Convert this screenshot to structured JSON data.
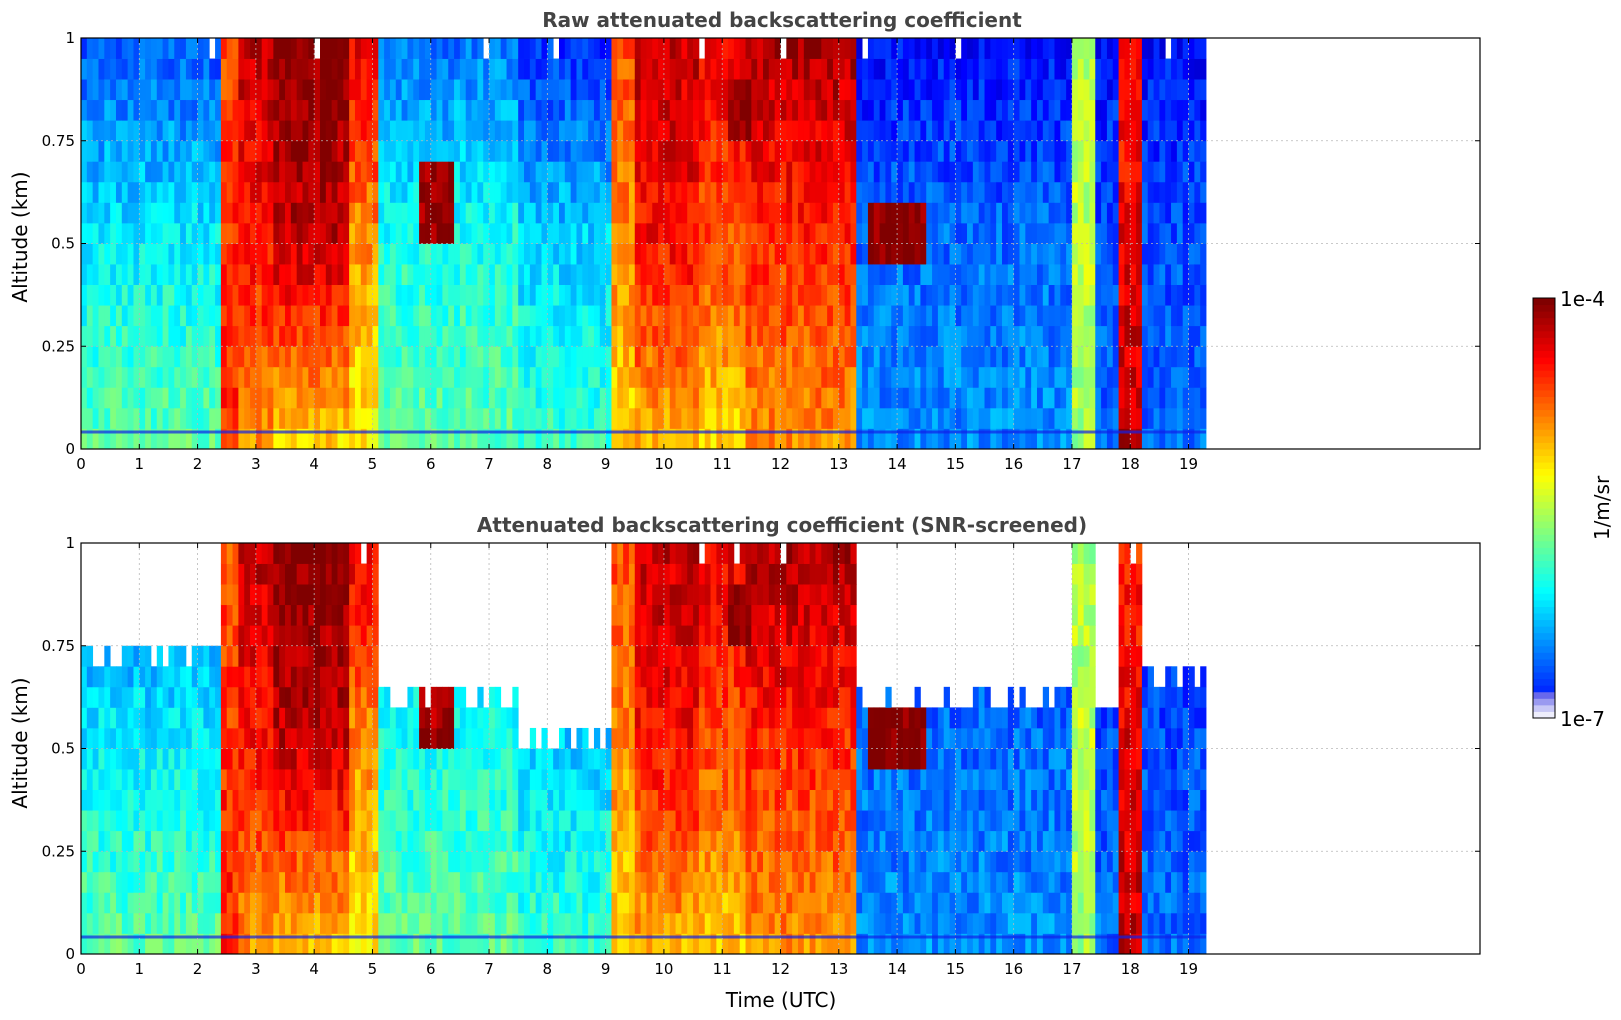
{
  "chart_data": [
    {
      "type": "heatmap",
      "title": "Raw attenuated backscattering coefficient",
      "xlabel": "",
      "ylabel": "Altitude (km)",
      "xlim": [
        0,
        24
      ],
      "ylim": [
        0,
        1
      ],
      "xticks": [
        "0",
        "1",
        "2",
        "3",
        "4",
        "5",
        "6",
        "7",
        "8",
        "9",
        "10",
        "11",
        "12",
        "13",
        "14",
        "15",
        "16",
        "17",
        "18",
        "19"
      ],
      "yticks": [
        "0",
        "0.25",
        "0.5",
        "0.75",
        "1"
      ],
      "data_end_hour": 19.3,
      "grid": true,
      "screened": false,
      "profiles_log10": [
        {
          "t0": 0.0,
          "t1": 2.4,
          "surface": -5.6,
          "low": -5.9,
          "top": -6.4,
          "top_alt": 1.0
        },
        {
          "t0": 2.4,
          "t1": 2.75,
          "surface": -4.5,
          "low": -4.5,
          "top": -4.6,
          "top_alt": 1.0
        },
        {
          "t0": 2.75,
          "t1": 3.3,
          "surface": -4.8,
          "low": -4.4,
          "top": -4.2,
          "top_alt": 1.0
        },
        {
          "t0": 3.3,
          "t1": 4.6,
          "surface": -5.0,
          "low": -4.2,
          "top": -4.0,
          "top_alt": 1.0
        },
        {
          "t0": 4.6,
          "t1": 5.1,
          "surface": -5.1,
          "low": -4.8,
          "top": -4.3,
          "top_alt": 1.0
        },
        {
          "t0": 5.1,
          "t1": 7.5,
          "surface": -5.6,
          "low": -5.8,
          "top": -6.3,
          "top_alt": 1.0
        },
        {
          "t0": 7.5,
          "t1": 9.1,
          "surface": -5.7,
          "low": -6.0,
          "top": -6.5,
          "top_alt": 1.0
        },
        {
          "t0": 9.1,
          "t1": 9.5,
          "surface": -5.0,
          "low": -4.8,
          "top": -4.6,
          "top_alt": 1.0
        },
        {
          "t0": 9.5,
          "t1": 10.6,
          "surface": -4.9,
          "low": -4.4,
          "top": -4.2,
          "top_alt": 1.0
        },
        {
          "t0": 10.6,
          "t1": 11.4,
          "surface": -5.0,
          "low": -4.6,
          "top": -4.3,
          "top_alt": 1.0
        },
        {
          "t0": 11.4,
          "t1": 13.3,
          "surface": -4.8,
          "low": -4.5,
          "top": -4.1,
          "top_alt": 1.0
        },
        {
          "t0": 13.3,
          "t1": 17.0,
          "surface": -6.2,
          "low": -6.3,
          "top": -6.6,
          "top_alt": 1.0
        },
        {
          "t0": 17.0,
          "t1": 17.4,
          "surface": -5.4,
          "low": -5.3,
          "top": -5.4,
          "top_alt": 1.0
        },
        {
          "t0": 17.4,
          "t1": 17.8,
          "surface": -6.3,
          "low": -6.4,
          "top": -6.6,
          "top_alt": 1.0
        },
        {
          "t0": 17.8,
          "t1": 18.2,
          "surface": -4.2,
          "low": -4.3,
          "top": -4.5,
          "top_alt": 1.0
        },
        {
          "t0": 18.2,
          "t1": 19.3,
          "surface": -6.3,
          "low": -6.4,
          "top": -6.6,
          "top_alt": 1.0
        }
      ],
      "cloud_features": [
        {
          "t0": 5.8,
          "t1": 6.4,
          "alt0": 0.5,
          "alt1": 0.72,
          "log10": -4.1
        },
        {
          "t0": 13.5,
          "t1": 14.5,
          "alt0": 0.45,
          "alt1": 0.62,
          "log10": -4.0
        },
        {
          "t0": 11.1,
          "t1": 11.5,
          "alt0": 0.75,
          "alt1": 0.92,
          "log10": -4.0
        }
      ]
    },
    {
      "type": "heatmap",
      "title": "Attenuated backscattering coefficient (SNR-screened)",
      "xlabel": "Time (UTC)",
      "ylabel": "Altitude (km)",
      "xlim": [
        0,
        24
      ],
      "ylim": [
        0,
        1
      ],
      "xticks": [
        "0",
        "1",
        "2",
        "3",
        "4",
        "5",
        "6",
        "7",
        "8",
        "9",
        "10",
        "11",
        "12",
        "13",
        "14",
        "15",
        "16",
        "17",
        "18",
        "19"
      ],
      "yticks": [
        "0",
        "0.25",
        "0.5",
        "0.75",
        "1"
      ],
      "data_end_hour": 19.3,
      "grid": true,
      "screened": true,
      "profiles_log10": [
        {
          "t0": 0.0,
          "t1": 2.4,
          "surface": -5.6,
          "low": -5.9,
          "top": -6.3,
          "top_alt": 0.74
        },
        {
          "t0": 2.4,
          "t1": 2.75,
          "surface": -4.5,
          "low": -4.5,
          "top": -4.6,
          "top_alt": 1.0
        },
        {
          "t0": 2.75,
          "t1": 3.3,
          "surface": -4.8,
          "low": -4.4,
          "top": -4.2,
          "top_alt": 1.0
        },
        {
          "t0": 3.3,
          "t1": 4.6,
          "surface": -5.0,
          "low": -4.2,
          "top": -4.0,
          "top_alt": 1.0
        },
        {
          "t0": 4.6,
          "t1": 5.1,
          "surface": -5.1,
          "low": -4.8,
          "top": -4.3,
          "top_alt": 1.0
        },
        {
          "t0": 5.1,
          "t1": 7.5,
          "surface": -5.6,
          "low": -5.8,
          "top": -6.1,
          "top_alt": 0.64
        },
        {
          "t0": 7.5,
          "t1": 9.1,
          "surface": -5.7,
          "low": -6.0,
          "top": -6.2,
          "top_alt": 0.52
        },
        {
          "t0": 9.1,
          "t1": 9.5,
          "surface": -5.0,
          "low": -4.8,
          "top": -4.6,
          "top_alt": 1.0
        },
        {
          "t0": 9.5,
          "t1": 10.6,
          "surface": -4.9,
          "low": -4.4,
          "top": -4.2,
          "top_alt": 1.0
        },
        {
          "t0": 10.6,
          "t1": 11.4,
          "surface": -5.0,
          "low": -4.6,
          "top": -4.3,
          "top_alt": 1.0
        },
        {
          "t0": 11.4,
          "t1": 13.3,
          "surface": -4.8,
          "low": -4.5,
          "top": -4.1,
          "top_alt": 1.0
        },
        {
          "t0": 13.3,
          "t1": 17.0,
          "surface": -6.2,
          "low": -6.3,
          "top": -6.5,
          "top_alt": 0.62
        },
        {
          "t0": 17.0,
          "t1": 17.4,
          "surface": -5.4,
          "low": -5.3,
          "top": -5.4,
          "top_alt": 1.0
        },
        {
          "t0": 17.4,
          "t1": 17.8,
          "surface": -6.3,
          "low": -6.4,
          "top": -6.5,
          "top_alt": 0.6
        },
        {
          "t0": 17.8,
          "t1": 18.2,
          "surface": -4.2,
          "low": -4.3,
          "top": -4.5,
          "top_alt": 1.0
        },
        {
          "t0": 18.2,
          "t1": 19.3,
          "surface": -6.3,
          "low": -6.4,
          "top": -6.5,
          "top_alt": 0.68
        }
      ],
      "cloud_features": [
        {
          "t0": 5.8,
          "t1": 6.4,
          "alt0": 0.5,
          "alt1": 0.72,
          "log10": -4.1
        },
        {
          "t0": 13.5,
          "t1": 14.5,
          "alt0": 0.45,
          "alt1": 0.62,
          "log10": -4.0
        },
        {
          "t0": 11.1,
          "t1": 11.5,
          "alt0": 0.75,
          "alt1": 0.92,
          "log10": -4.0
        }
      ]
    }
  ],
  "colorbar": {
    "label": "1/m/sr",
    "max_label": "1e-4",
    "min_label": "1e-7",
    "log10_min": -7,
    "log10_max": -4,
    "colormap": "jet"
  }
}
